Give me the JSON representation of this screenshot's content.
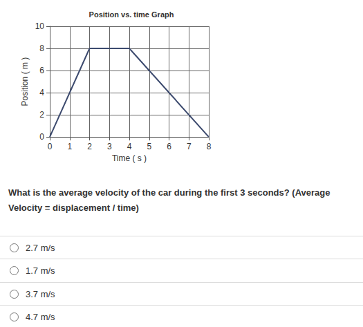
{
  "chart_data": {
    "type": "line",
    "title": "Position vs. time Graph",
    "x_label": "Time ( s )",
    "y_label": "Position ( m )",
    "x": [
      0,
      2,
      4,
      8
    ],
    "values": [
      0,
      8,
      8,
      0
    ],
    "color": "#3c4a6e",
    "xlim": [
      0,
      8
    ],
    "xticks": [
      0,
      1,
      2,
      3,
      4,
      5,
      6,
      7,
      8
    ],
    "ylim": [
      0,
      10
    ],
    "yticks": [
      0,
      2,
      4,
      6,
      8,
      10
    ],
    "grid": true
  },
  "question": "What is the average velocity of the car during the first 3 seconds? (Average Velocity = displacement / time)",
  "options": [
    "2.7 m/s",
    "1.7 m/s",
    "3.7 m/s",
    "4.7 m/s"
  ]
}
